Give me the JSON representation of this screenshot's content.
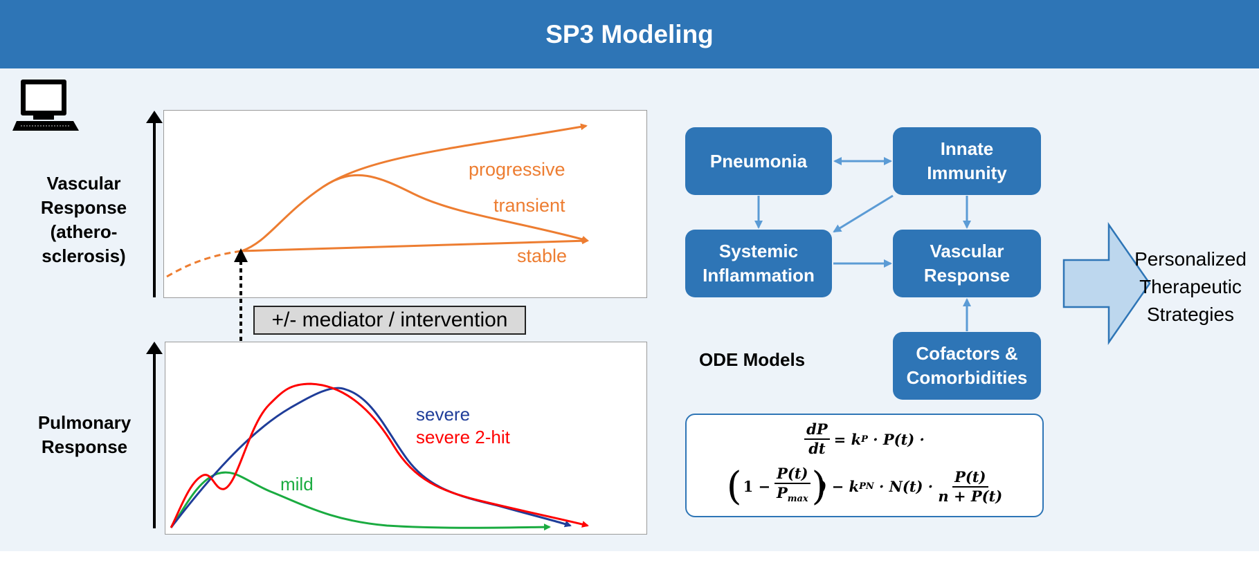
{
  "header": {
    "title": "SP3 Modeling"
  },
  "icons": {
    "computer": "computer-icon"
  },
  "vascular_plot": {
    "ylabel": "Vascular Response (athero- sclerosis)",
    "ylabel_lines": [
      "Vascular",
      "Response",
      "(athero-",
      "sclerosis)"
    ],
    "curves": [
      {
        "name": "progressive",
        "color": "#ed7d31"
      },
      {
        "name": "transient",
        "color": "#ed7d31"
      },
      {
        "name": "stable",
        "color": "#ed7d31"
      }
    ]
  },
  "mediator_label": "+/- mediator  / intervention",
  "pulmonary_plot": {
    "ylabel": "Pulmonary Response",
    "ylabel_lines": [
      "Pulmonary",
      "Response"
    ],
    "curves": [
      {
        "name": "severe",
        "color": "#1f3d99"
      },
      {
        "name": "severe 2-hit",
        "color": "#ff0000"
      },
      {
        "name": "mild",
        "color": "#1aab40"
      }
    ]
  },
  "boxes": {
    "pneumonia": "Pneumonia",
    "innate_immunity": [
      "Innate",
      "Immunity"
    ],
    "systemic_inflammation": [
      "Systemic",
      "Inflammation"
    ],
    "vascular_response": [
      "Vascular",
      "Response"
    ],
    "cofactors": [
      "Cofactors &",
      "Comorbidities"
    ]
  },
  "ode_title": "ODE Models",
  "equation": {
    "dP": "dP",
    "dt": "dt",
    "rhs1": "= k",
    "sub_P": "P",
    "rhs1b": " · P(t) ·",
    "one_minus": "1 −",
    "Pt": "P(t)",
    "Pmax": "P",
    "sub_max": "max",
    "minus_k": ") − k",
    "sub_PN": "PN",
    "mid": " · N(t) · ",
    "frac2_num": "P(t)",
    "frac2_den": "n + P(t)"
  },
  "strategies": [
    "Personalized",
    "Therapeutic",
    "Strategies"
  ],
  "colors": {
    "header": "#2e75b6",
    "box": "#2e75b6",
    "arrow_light": "#5b9bd5",
    "orange": "#ed7d31",
    "big_arrow_fill": "#bdd7ee"
  }
}
